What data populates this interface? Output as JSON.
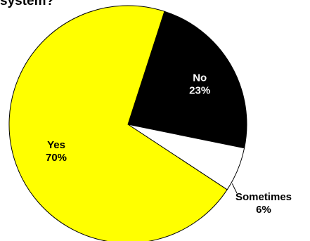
{
  "title": "system?",
  "chart_data": {
    "type": "pie",
    "title": "system?",
    "slices": [
      {
        "label": "Yes",
        "value": 70,
        "value_label": "70%",
        "color": "#ffff00",
        "label_color": "#000000"
      },
      {
        "label": "No",
        "value": 23,
        "value_label": "23%",
        "color": "#000000",
        "label_color": "#ffffff"
      },
      {
        "label": "Sometimes",
        "value": 6,
        "value_label": "6%",
        "color": "#ffffff",
        "label_color": "#000000"
      }
    ],
    "legend": "none"
  }
}
